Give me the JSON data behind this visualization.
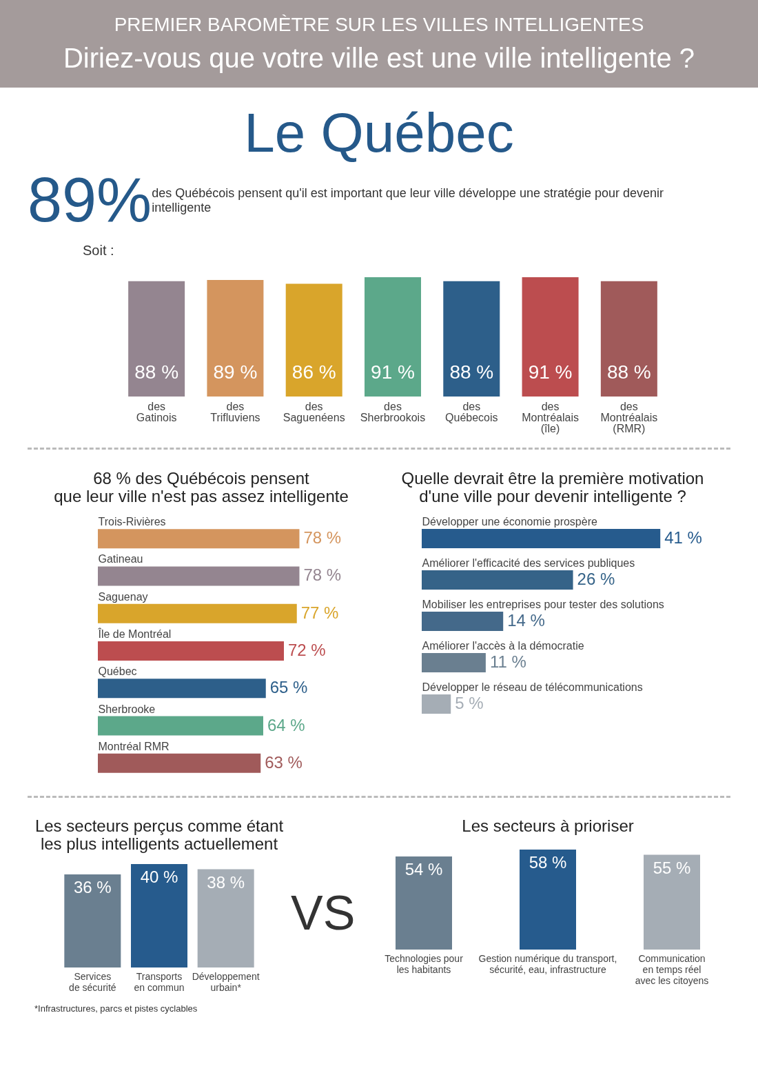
{
  "chart_data": [
    {
      "type": "bar",
      "title": "PREMIER BAROMÈTRE SUR LES VILLES INTELLIGENTES",
      "subtitle": "Diriez-vous que votre ville est une ville intelligente ?",
      "annotations": [
        "Le Québec",
        "89%",
        "des Québécois pensent qu'il est important que leur ville développe une stratégie pour devenir intelligente",
        "Soit :"
      ],
      "categories": [
        "des\nGatinois",
        "des\nTrifluviens",
        "des\nSaguenéens",
        "des\nSherbrookois",
        "des\nQuébecois",
        "des\nMontréalais\n(île)",
        "des\nMontréalais\n(RMR)"
      ],
      "values": [
        88,
        89,
        86,
        91,
        88,
        91,
        88
      ],
      "colors": [
        "#948590",
        "#d4955e",
        "#d9a52b",
        "#5ca88a",
        "#2d5f8a",
        "#bc4d4f",
        "#a05a5a"
      ],
      "value_labels": [
        "88 %",
        "89 %",
        "86 %",
        "91 %",
        "88 %",
        "91 %",
        "88 %"
      ]
    },
    {
      "type": "bar",
      "orientation": "horizontal",
      "title": "68 % des Québécois pensent\nque leur ville n'est pas assez intelligente",
      "categories": [
        "Trois-Rivières",
        "Gatineau",
        "Saguenay",
        "Île de Montréal",
        "Québec",
        "Sherbrooke",
        "Montréal RMR"
      ],
      "values": [
        78,
        78,
        77,
        72,
        65,
        64,
        63
      ],
      "colors": [
        "#d4955e",
        "#948590",
        "#d9a52b",
        "#bc4d4f",
        "#2d5f8a",
        "#5ca88a",
        "#a05a5a"
      ],
      "value_labels": [
        "78 %",
        "78 %",
        "77 %",
        "72 %",
        "65 %",
        "64 %",
        "63 %"
      ]
    },
    {
      "type": "bar",
      "orientation": "horizontal",
      "title": "Quelle devrait être la première motivation\nd'une ville pour devenir intelligente ?",
      "categories": [
        "Développer une économie prospère",
        "Améliorer l'efficacité des services publiques",
        "Mobiliser les entreprises pour tester des solutions",
        "Améliorer l'accès à la démocratie",
        "Développer le réseau de télécommunications"
      ],
      "values": [
        41,
        26,
        14,
        11,
        5
      ],
      "colors": [
        "#265b8d",
        "#356388",
        "#44698a",
        "#6a7f90",
        "#a5adb5"
      ],
      "value_labels": [
        "41 %",
        "26 %",
        "14 %",
        "11 %",
        "5 %"
      ]
    },
    {
      "type": "bar",
      "title": "Les secteurs perçus comme étant\nles plus intelligents actuellement",
      "annotations": [
        "*Infrastructures, parcs et pistes cyclables",
        "VS"
      ],
      "categories": [
        "Services\nde sécurité",
        "Transports\nen commun",
        "Développement\nurbain*"
      ],
      "values": [
        36,
        40,
        38
      ],
      "colors": [
        "#6a7f90",
        "#265b8d",
        "#a5adb5"
      ],
      "value_labels": [
        "36 %",
        "40 %",
        "38 %"
      ]
    },
    {
      "type": "bar",
      "title": "Les secteurs à prioriser",
      "categories": [
        "Technologies pour\nles habitants",
        "Gestion numérique du transport,\nsécurité, eau, infrastructure",
        "Communication\nen temps réel\navec les citoyens"
      ],
      "values": [
        54,
        58,
        55
      ],
      "colors": [
        "#6a7f90",
        "#265b8d",
        "#a5adb5"
      ],
      "value_labels": [
        "54 %",
        "58 %",
        "55 %"
      ]
    }
  ]
}
